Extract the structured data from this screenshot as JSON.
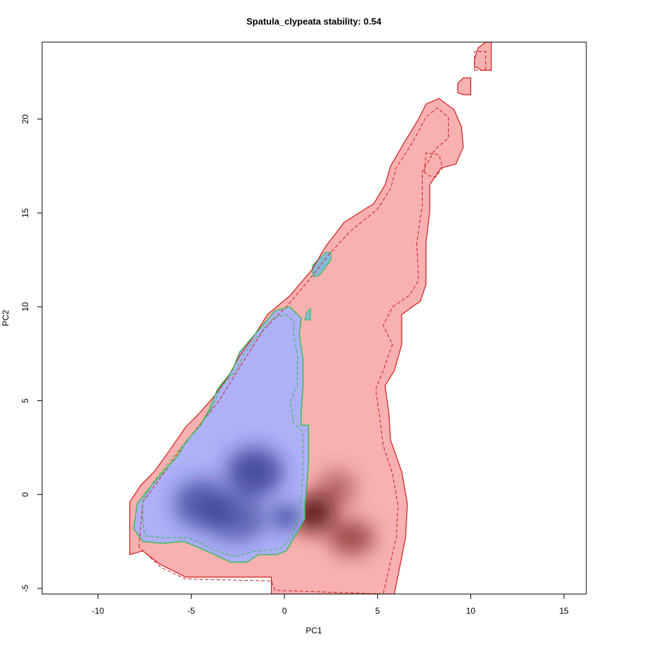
{
  "chart_data": {
    "type": "niche-overlap-density",
    "title": "Spatula_clypeata stability: 0.54",
    "xlabel": "PC1",
    "ylabel": "PC2",
    "xlim": [
      -13,
      16.2
    ],
    "ylim": [
      -5.3,
      24.1
    ],
    "x_ticks": [
      -10,
      -5,
      0,
      5,
      10,
      15
    ],
    "y_ticks": [
      -5,
      0,
      5,
      10,
      15,
      20
    ],
    "grid": false,
    "colors": {
      "red_region": "#f8b0b0",
      "red_contour": "#d01c1c",
      "blue_region": "#aeb0f8",
      "blue_contour": "#2fbf4a",
      "overlap_patch": "#88b8d8",
      "blue_core": "#202a7a",
      "red_core": "#5a0a0a"
    },
    "series": [
      {
        "role": "red",
        "outline": [
          [
            -8.3,
            -3.2
          ],
          [
            -8.3,
            -0.4
          ],
          [
            -7.7,
            0.5
          ],
          [
            -7.0,
            1.2
          ],
          [
            -6.2,
            2.3
          ],
          [
            -5.3,
            3.6
          ],
          [
            -4.5,
            4.4
          ],
          [
            -3.8,
            5.2
          ],
          [
            -3.0,
            6.3
          ],
          [
            -2.4,
            7.4
          ],
          [
            -1.6,
            8.5
          ],
          [
            -0.9,
            9.6
          ],
          [
            0.3,
            10.6
          ],
          [
            1.5,
            12.0
          ],
          [
            2.2,
            13.2
          ],
          [
            3.2,
            14.5
          ],
          [
            4.8,
            15.5
          ],
          [
            5.4,
            16.5
          ],
          [
            5.7,
            17.5
          ],
          [
            6.4,
            18.7
          ],
          [
            7.2,
            20.0
          ],
          [
            7.6,
            20.8
          ],
          [
            8.3,
            21.1
          ],
          [
            9.1,
            20.5
          ],
          [
            9.5,
            19.6
          ],
          [
            9.6,
            18.5
          ],
          [
            9.2,
            17.6
          ],
          [
            8.4,
            17.4
          ],
          [
            7.8,
            16.5
          ],
          [
            7.8,
            15.1
          ],
          [
            7.6,
            13.4
          ],
          [
            7.6,
            11.2
          ],
          [
            7.3,
            10.3
          ],
          [
            6.3,
            9.6
          ],
          [
            6.3,
            8.0
          ],
          [
            5.9,
            6.6
          ],
          [
            5.4,
            5.8
          ],
          [
            5.6,
            4.4
          ],
          [
            5.7,
            2.9
          ],
          [
            6.3,
            1.2
          ],
          [
            6.6,
            -0.5
          ],
          [
            6.5,
            -2.3
          ],
          [
            6.2,
            -3.8
          ],
          [
            5.9,
            -5.3
          ],
          [
            -0.7,
            -5.3
          ],
          [
            -0.7,
            -4.4
          ],
          [
            -5.3,
            -4.4
          ],
          [
            -6.7,
            -3.7
          ],
          [
            -7.6,
            -3.0
          ],
          [
            -8.3,
            -3.2
          ]
        ],
        "islands": [
          [
            [
              9.3,
              21.4
            ],
            [
              9.3,
              21.9
            ],
            [
              9.6,
              22.2
            ],
            [
              10.0,
              22.2
            ],
            [
              10.0,
              21.3
            ],
            [
              9.6,
              21.3
            ]
          ],
          [
            [
              10.2,
              23.2
            ],
            [
              10.4,
              23.8
            ],
            [
              10.8,
              24.1
            ],
            [
              11.1,
              24.1
            ],
            [
              11.1,
              22.6
            ],
            [
              10.6,
              22.6
            ],
            [
              10.2,
              22.8
            ]
          ]
        ],
        "dashed_inner": [
          [
            -7.8,
            -2.8
          ],
          [
            -7.6,
            -0.4
          ],
          [
            -6.5,
            1.1
          ],
          [
            -5.8,
            2.1
          ],
          [
            -4.8,
            3.4
          ],
          [
            -3.5,
            5.0
          ],
          [
            -2.2,
            7.1
          ],
          [
            -1.1,
            8.8
          ],
          [
            0.1,
            10.0
          ],
          [
            1.3,
            11.4
          ],
          [
            2.4,
            12.8
          ],
          [
            3.5,
            14.0
          ],
          [
            5.0,
            15.2
          ],
          [
            5.7,
            16.3
          ],
          [
            6.0,
            17.4
          ],
          [
            6.9,
            18.8
          ],
          [
            7.6,
            20.1
          ],
          [
            8.2,
            20.6
          ],
          [
            8.8,
            20.1
          ],
          [
            8.8,
            19.0
          ],
          [
            8.1,
            18.4
          ],
          [
            7.4,
            17.2
          ],
          [
            7.4,
            15.4
          ],
          [
            7.1,
            13.4
          ],
          [
            7.2,
            11.4
          ],
          [
            6.7,
            10.6
          ],
          [
            5.8,
            10.0
          ],
          [
            5.3,
            9.0
          ],
          [
            5.8,
            8.0
          ],
          [
            5.3,
            6.6
          ],
          [
            4.9,
            5.6
          ],
          [
            5.1,
            4.2
          ],
          [
            5.3,
            2.6
          ],
          [
            5.8,
            1.1
          ],
          [
            6.1,
            -0.6
          ],
          [
            6.0,
            -2.3
          ],
          [
            5.6,
            -4.0
          ],
          [
            5.3,
            -5.3
          ],
          [
            -0.5,
            -5.1
          ],
          [
            -0.7,
            -4.6
          ],
          [
            -5.3,
            -4.5
          ],
          [
            -6.6,
            -3.9
          ],
          [
            -7.8,
            -2.8
          ]
        ],
        "dashed_loop": [
          [
            10.2,
            22.6
          ],
          [
            10.2,
            23.6
          ],
          [
            10.8,
            23.6
          ],
          [
            10.8,
            22.6
          ],
          [
            10.2,
            22.6
          ]
        ],
        "dashed_hole": [
          [
            7.5,
            17.2
          ],
          [
            7.6,
            18.2
          ],
          [
            8.3,
            18.1
          ],
          [
            8.5,
            17.4
          ],
          [
            8.1,
            16.9
          ],
          [
            7.7,
            17.0
          ],
          [
            7.5,
            17.2
          ]
        ],
        "density_peaks": [
          {
            "x": 1.5,
            "y": -1.0,
            "sx": 1.2,
            "sy": 1.0,
            "w": 1.0
          },
          {
            "x": 3.6,
            "y": -2.3,
            "sx": 1.2,
            "sy": 0.9,
            "w": 0.65
          },
          {
            "x": 2.8,
            "y": 0.3,
            "sx": 1.0,
            "sy": 1.0,
            "w": 0.45
          }
        ]
      },
      {
        "role": "blue",
        "outline": [
          [
            -8.0,
            -1.2
          ],
          [
            -8.1,
            -1.8
          ],
          [
            -7.6,
            -2.5
          ],
          [
            -6.6,
            -2.6
          ],
          [
            -5.4,
            -2.5
          ],
          [
            -4.2,
            -3.0
          ],
          [
            -2.9,
            -3.6
          ],
          [
            -2.0,
            -3.6
          ],
          [
            -1.4,
            -3.2
          ],
          [
            -0.4,
            -3.2
          ],
          [
            0.1,
            -3.0
          ],
          [
            0.4,
            -2.5
          ],
          [
            0.7,
            -2.0
          ],
          [
            1.1,
            -1.3
          ],
          [
            1.1,
            -0.5
          ],
          [
            1.2,
            0.5
          ],
          [
            1.3,
            1.6
          ],
          [
            1.3,
            3.7
          ],
          [
            0.9,
            3.7
          ],
          [
            0.9,
            4.4
          ],
          [
            1.0,
            5.8
          ],
          [
            1.0,
            7.2
          ],
          [
            0.8,
            8.5
          ],
          [
            0.9,
            9.4
          ],
          [
            0.3,
            10.0
          ],
          [
            -0.5,
            9.8
          ],
          [
            -1.1,
            9.1
          ],
          [
            -1.7,
            8.4
          ],
          [
            -2.4,
            7.6
          ],
          [
            -2.8,
            6.6
          ],
          [
            -3.6,
            5.6
          ],
          [
            -4.0,
            4.6
          ],
          [
            -4.5,
            3.7
          ],
          [
            -5.3,
            2.8
          ],
          [
            -5.7,
            2.1
          ],
          [
            -6.6,
            1.1
          ],
          [
            -7.2,
            0.4
          ],
          [
            -7.9,
            -0.5
          ],
          [
            -8.0,
            -1.2
          ]
        ],
        "dashed_inner": [
          [
            -7.6,
            -1.3
          ],
          [
            -7.5,
            -2.2
          ],
          [
            -6.4,
            -2.3
          ],
          [
            -5.1,
            -2.3
          ],
          [
            -3.9,
            -2.9
          ],
          [
            -2.7,
            -3.3
          ],
          [
            -1.5,
            -3.0
          ],
          [
            -0.2,
            -2.9
          ],
          [
            0.4,
            -2.2
          ],
          [
            0.7,
            -1.4
          ],
          [
            0.9,
            -0.3
          ],
          [
            1.0,
            1.3
          ],
          [
            1.0,
            3.3
          ],
          [
            0.5,
            3.8
          ],
          [
            0.3,
            4.9
          ],
          [
            0.7,
            5.8
          ],
          [
            0.7,
            7.4
          ],
          [
            0.5,
            8.5
          ],
          [
            0.5,
            9.2
          ],
          [
            0.1,
            9.6
          ],
          [
            -0.6,
            9.4
          ],
          [
            -1.3,
            8.6
          ],
          [
            -2.1,
            7.6
          ],
          [
            -2.6,
            6.6
          ],
          [
            -3.4,
            5.7
          ],
          [
            -3.9,
            4.6
          ],
          [
            -4.5,
            3.7
          ],
          [
            -5.3,
            2.8
          ],
          [
            -6.3,
            1.6
          ],
          [
            -7.0,
            0.7
          ],
          [
            -7.6,
            -0.3
          ],
          [
            -7.6,
            -1.3
          ]
        ],
        "density_peaks": [
          {
            "x": 0.1,
            "y": -1.2,
            "sx": 0.7,
            "sy": 0.6,
            "w": 1.0
          },
          {
            "x": -1.6,
            "y": 1.2,
            "sx": 1.5,
            "sy": 1.3,
            "w": 0.85
          },
          {
            "x": -4.4,
            "y": -0.5,
            "sx": 1.5,
            "sy": 1.3,
            "w": 0.75
          },
          {
            "x": -2.6,
            "y": -1.3,
            "sx": 1.6,
            "sy": 1.2,
            "w": 0.65
          }
        ]
      }
    ],
    "overlap_patches": [
      [
        [
          1.5,
          11.8
        ],
        [
          1.5,
          12.2
        ],
        [
          2.2,
          12.9
        ],
        [
          2.5,
          12.9
        ],
        [
          2.5,
          12.5
        ],
        [
          1.9,
          11.7
        ],
        [
          1.6,
          11.6
        ]
      ],
      [
        [
          1.1,
          9.3
        ],
        [
          1.2,
          9.7
        ],
        [
          1.4,
          9.9
        ],
        [
          1.4,
          9.3
        ]
      ]
    ]
  }
}
